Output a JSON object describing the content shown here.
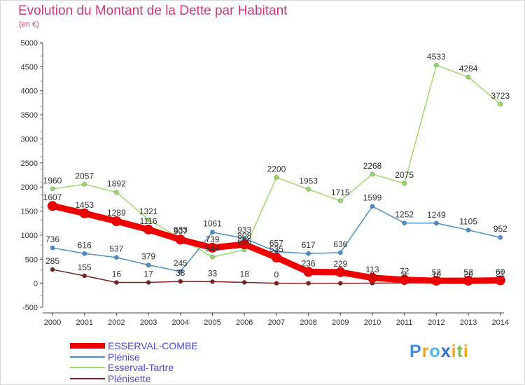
{
  "title": "Evolution du Montant de la Dette par Habitant",
  "unit_label": "(en €)",
  "logo": {
    "text": "Proxiti",
    "letters": [
      {
        "ch": "P",
        "color": "#3e8ee6"
      },
      {
        "ch": "r",
        "color": "#f2a51a"
      },
      {
        "ch": "o",
        "color": "#4bb6e8"
      },
      {
        "ch": "x",
        "color": "#2f6fd0"
      },
      {
        "ch": "i",
        "color": "#f2a51a"
      },
      {
        "ch": "t",
        "color": "#7cc142"
      },
      {
        "ch": "i",
        "color": "#f2a51a"
      }
    ]
  },
  "chart_data": {
    "type": "line",
    "title": "Evolution du Montant de la Dette par Habitant",
    "ylabel": "(en €)",
    "xlabel": "",
    "x": [
      "2000",
      "2001",
      "2002",
      "2003",
      "2004",
      "2005",
      "2006",
      "2007",
      "2008",
      "2009",
      "2010",
      "2011",
      "2012",
      "2013",
      "2014"
    ],
    "ylim": [
      -500,
      5000
    ],
    "yticks": [
      "-500",
      "0",
      "500",
      "1000",
      "1500",
      "2000",
      "2500",
      "3000",
      "3500",
      "4000",
      "4500",
      "5000"
    ],
    "grid": false,
    "legend": "bottom-left",
    "series": [
      {
        "name": "ESSERVAL-COMBE",
        "color": "#ee0000",
        "width": 9,
        "values": [
          1607,
          1453,
          1289,
          1116,
          907,
          739,
          808,
          535,
          236,
          229,
          113,
          72,
          52,
          52,
          60
        ],
        "labels": [
          "1607",
          "1453",
          "1289",
          "1116",
          "907",
          "739",
          "808",
          "535",
          "236",
          "229",
          "113",
          "72",
          "52",
          "52",
          "60"
        ]
      },
      {
        "name": "Plénise",
        "color": "#4a8fcd",
        "width": 1.5,
        "values": [
          736,
          616,
          537,
          379,
          245,
          1061,
          933,
          657,
          617,
          636,
          1599,
          1252,
          1249,
          1105,
          952
        ],
        "labels": [
          "736",
          "616",
          "537",
          "379",
          "245",
          "1061",
          "933",
          "657",
          "617",
          "636",
          "1599",
          "1252",
          "1249",
          "1105",
          "952"
        ]
      },
      {
        "name": "Esserval-Tartre",
        "color": "#99dd66",
        "width": 1.5,
        "values": [
          1960,
          2057,
          1892,
          1321,
          933,
          544,
          696,
          2200,
          1953,
          1715,
          2268,
          2075,
          4533,
          4284,
          3723
        ],
        "labels": [
          "1960",
          "2057",
          "1892",
          "1321",
          "933",
          "544",
          "696",
          "2200",
          "1953",
          "1715",
          "2268",
          "2075",
          "4533",
          "4284",
          "3723"
        ]
      },
      {
        "name": "Plénisette",
        "color": "#7a2121",
        "width": 1.5,
        "values": [
          285,
          155,
          16,
          17,
          38,
          33,
          18,
          0,
          0,
          0,
          2,
          8,
          10,
          20,
          21
        ],
        "labels": [
          "285",
          "155",
          "16",
          "17",
          "38",
          "33",
          "18",
          "0",
          "",
          "",
          "2",
          "8",
          "10",
          "20",
          "21"
        ]
      }
    ]
  }
}
